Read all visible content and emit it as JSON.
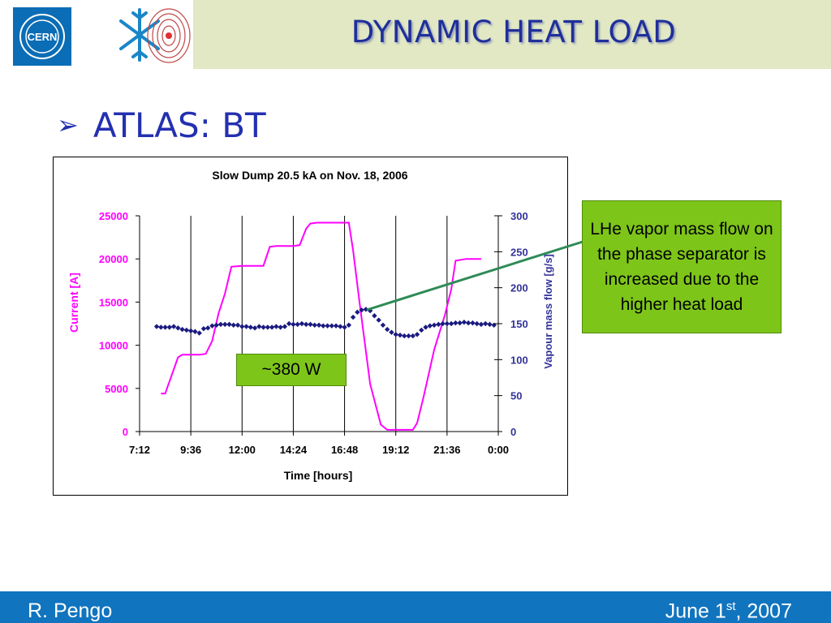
{
  "slide": {
    "title": "DYNAMIC HEAT LOAD",
    "bullet": "ATLAS: BT",
    "logo_text": "CERN",
    "callout_right": "LHe vapor mass flow on the phase separator is increased due to the higher heat load",
    "callout_left": "~380 W",
    "footer_left": "R. Pengo",
    "footer_date_pre": "June 1",
    "footer_date_sup": "st",
    "footer_date_post": ", 2007",
    "colors": {
      "header_band": "#e1e8c3",
      "title": "#1f2f9a",
      "footer": "#1074bf",
      "callout": "#7ec51a",
      "current": "#ff00ff",
      "flow": "#1a1a80",
      "arrow": "#2e8b57"
    }
  },
  "chart_data": {
    "type": "line",
    "title": "Slow Dump 20.5 kA on Nov. 18, 2006",
    "xlabel": "Time [hours]",
    "ylabel_left": "Current [A]",
    "ylabel_right": "Vapour mass flow [g/s]",
    "x_ticks": [
      "7:12",
      "9:36",
      "12:00",
      "14:24",
      "16:48",
      "19:12",
      "21:36",
      "0:00"
    ],
    "xlim": [
      7.2,
      24.0
    ],
    "ylim_left": [
      0,
      25000
    ],
    "ylim_right": [
      0,
      300
    ],
    "yticks_left": [
      0,
      5000,
      10000,
      15000,
      20000,
      25000
    ],
    "yticks_right": [
      0,
      50,
      100,
      150,
      200,
      250,
      300
    ],
    "series": [
      {
        "name": "",
        "axis": "left",
        "style": "line",
        "color": "#ff00ff",
        "x": [
          8.2,
          8.4,
          8.7,
          9.0,
          9.2,
          9.6,
          10.0,
          10.3,
          10.6,
          10.9,
          11.2,
          11.5,
          12.0,
          12.5,
          13.0,
          13.3,
          13.6,
          14.0,
          14.4,
          14.7,
          15.0,
          15.2,
          15.5,
          16.0,
          16.5,
          17.0,
          17.2,
          17.5,
          18.0,
          18.5,
          18.8,
          19.0,
          19.5,
          20.0,
          20.2,
          20.5,
          21.0,
          21.5,
          21.8,
          22.0,
          22.5,
          23.0,
          23.2
        ],
        "y": [
          4400,
          4400,
          6500,
          8600,
          8900,
          8900,
          8900,
          9000,
          10500,
          13700,
          16000,
          19100,
          19200,
          19200,
          19200,
          21400,
          21500,
          21500,
          21500,
          21600,
          23500,
          24100,
          24200,
          24200,
          24200,
          24200,
          21000,
          15000,
          5500,
          800,
          200,
          200,
          200,
          200,
          1000,
          4000,
          9500,
          13500,
          16500,
          19800,
          20000,
          20000,
          20000
        ]
      },
      {
        "name": "",
        "axis": "right",
        "style": "markers",
        "color": "#1a1a80",
        "x": [
          8.0,
          8.2,
          8.4,
          8.6,
          8.8,
          9.0,
          9.2,
          9.4,
          9.6,
          9.8,
          10.0,
          10.2,
          10.4,
          10.6,
          10.8,
          11.0,
          11.2,
          11.4,
          11.6,
          11.8,
          12.0,
          12.2,
          12.4,
          12.6,
          12.8,
          13.0,
          13.2,
          13.4,
          13.6,
          13.8,
          14.0,
          14.2,
          14.4,
          14.6,
          14.8,
          15.0,
          15.2,
          15.4,
          15.6,
          15.8,
          16.0,
          16.2,
          16.4,
          16.6,
          16.8,
          17.0,
          17.2,
          17.4,
          17.6,
          17.8,
          18.0,
          18.2,
          18.4,
          18.6,
          18.8,
          19.0,
          19.2,
          19.4,
          19.6,
          19.8,
          20.0,
          20.2,
          20.4,
          20.6,
          20.8,
          21.0,
          21.2,
          21.4,
          21.6,
          21.8,
          22.0,
          22.2,
          22.4,
          22.6,
          22.8,
          23.0,
          23.2,
          23.4,
          23.6,
          23.8
        ],
        "y": [
          146,
          145,
          145,
          145,
          146,
          144,
          142,
          141,
          140,
          139,
          137,
          143,
          144,
          147,
          148,
          149,
          149,
          149,
          148,
          148,
          146,
          146,
          145,
          144,
          146,
          145,
          145,
          145,
          146,
          145,
          146,
          150,
          149,
          149,
          150,
          149,
          149,
          148,
          148,
          147,
          147,
          147,
          147,
          146,
          145,
          148,
          159,
          166,
          169,
          170,
          168,
          161,
          155,
          148,
          142,
          138,
          135,
          134,
          133,
          133,
          133,
          135,
          141,
          145,
          147,
          148,
          149,
          150,
          150,
          150,
          151,
          151,
          152,
          151,
          151,
          150,
          149,
          150,
          149,
          148
        ]
      }
    ],
    "grid": "vertical",
    "legend": "none"
  }
}
